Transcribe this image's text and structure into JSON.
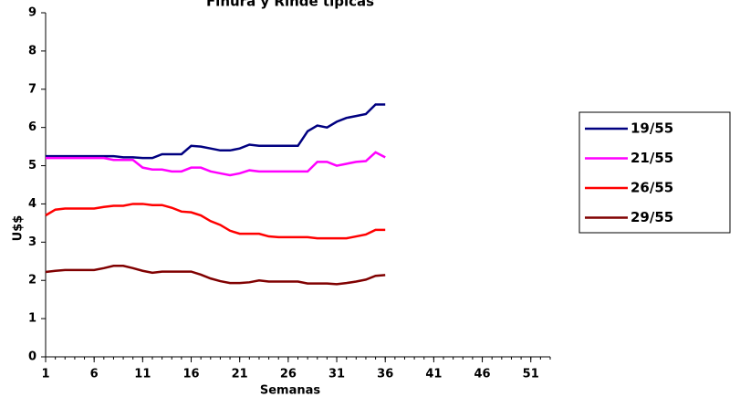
{
  "chart_data": {
    "type": "line",
    "title": "Finura y Rinde típicas",
    "x_label": "Semanas",
    "y_label": "U$$",
    "x": [
      1,
      2,
      3,
      4,
      5,
      6,
      7,
      8,
      9,
      10,
      11,
      12,
      13,
      14,
      15,
      16,
      17,
      18,
      19,
      20,
      21,
      22,
      23,
      24,
      25,
      26,
      27,
      28,
      29,
      30,
      31,
      32,
      33,
      34,
      35,
      36
    ],
    "xlim": [
      1,
      53
    ],
    "xticks": [
      1,
      6,
      11,
      16,
      21,
      26,
      31,
      36,
      41,
      46,
      51
    ],
    "ylim": [
      0,
      9
    ],
    "yticks": [
      0,
      1,
      2,
      3,
      4,
      5,
      6,
      7,
      8,
      9
    ],
    "grid": false,
    "legend": "right",
    "series": [
      {
        "name": "19/55",
        "color": "#000080",
        "values": [
          5.25,
          5.25,
          5.25,
          5.25,
          5.25,
          5.25,
          5.25,
          5.25,
          5.22,
          5.22,
          5.2,
          5.2,
          5.3,
          5.3,
          5.3,
          5.52,
          5.5,
          5.45,
          5.4,
          5.4,
          5.45,
          5.55,
          5.52,
          5.52,
          5.52,
          5.52,
          5.52,
          5.9,
          6.05,
          6.0,
          6.15,
          6.25,
          6.3,
          6.35,
          6.6,
          6.6
        ]
      },
      {
        "name": "21/55",
        "color": "#ff00ff",
        "values": [
          5.2,
          5.2,
          5.2,
          5.2,
          5.2,
          5.2,
          5.2,
          5.15,
          5.15,
          5.15,
          4.95,
          4.9,
          4.9,
          4.85,
          4.85,
          4.95,
          4.95,
          4.85,
          4.8,
          4.75,
          4.8,
          4.88,
          4.85,
          4.85,
          4.85,
          4.85,
          4.85,
          4.85,
          5.1,
          5.1,
          5.0,
          5.05,
          5.1,
          5.12,
          5.35,
          5.22
        ]
      },
      {
        "name": "26/55",
        "color": "#ff0000",
        "values": [
          3.7,
          3.85,
          3.88,
          3.88,
          3.88,
          3.88,
          3.92,
          3.95,
          3.95,
          4.0,
          4.0,
          3.97,
          3.97,
          3.9,
          3.8,
          3.78,
          3.7,
          3.55,
          3.45,
          3.3,
          3.22,
          3.22,
          3.22,
          3.15,
          3.13,
          3.13,
          3.13,
          3.13,
          3.1,
          3.1,
          3.1,
          3.1,
          3.15,
          3.2,
          3.32,
          3.32
        ]
      },
      {
        "name": "29/55",
        "color": "#800000",
        "values": [
          2.22,
          2.25,
          2.27,
          2.27,
          2.27,
          2.27,
          2.32,
          2.38,
          2.38,
          2.32,
          2.25,
          2.2,
          2.23,
          2.23,
          2.23,
          2.23,
          2.15,
          2.05,
          1.98,
          1.93,
          1.93,
          1.95,
          2.0,
          1.97,
          1.97,
          1.97,
          1.97,
          1.92,
          1.92,
          1.92,
          1.9,
          1.93,
          1.97,
          2.02,
          2.12,
          2.14
        ]
      }
    ]
  }
}
